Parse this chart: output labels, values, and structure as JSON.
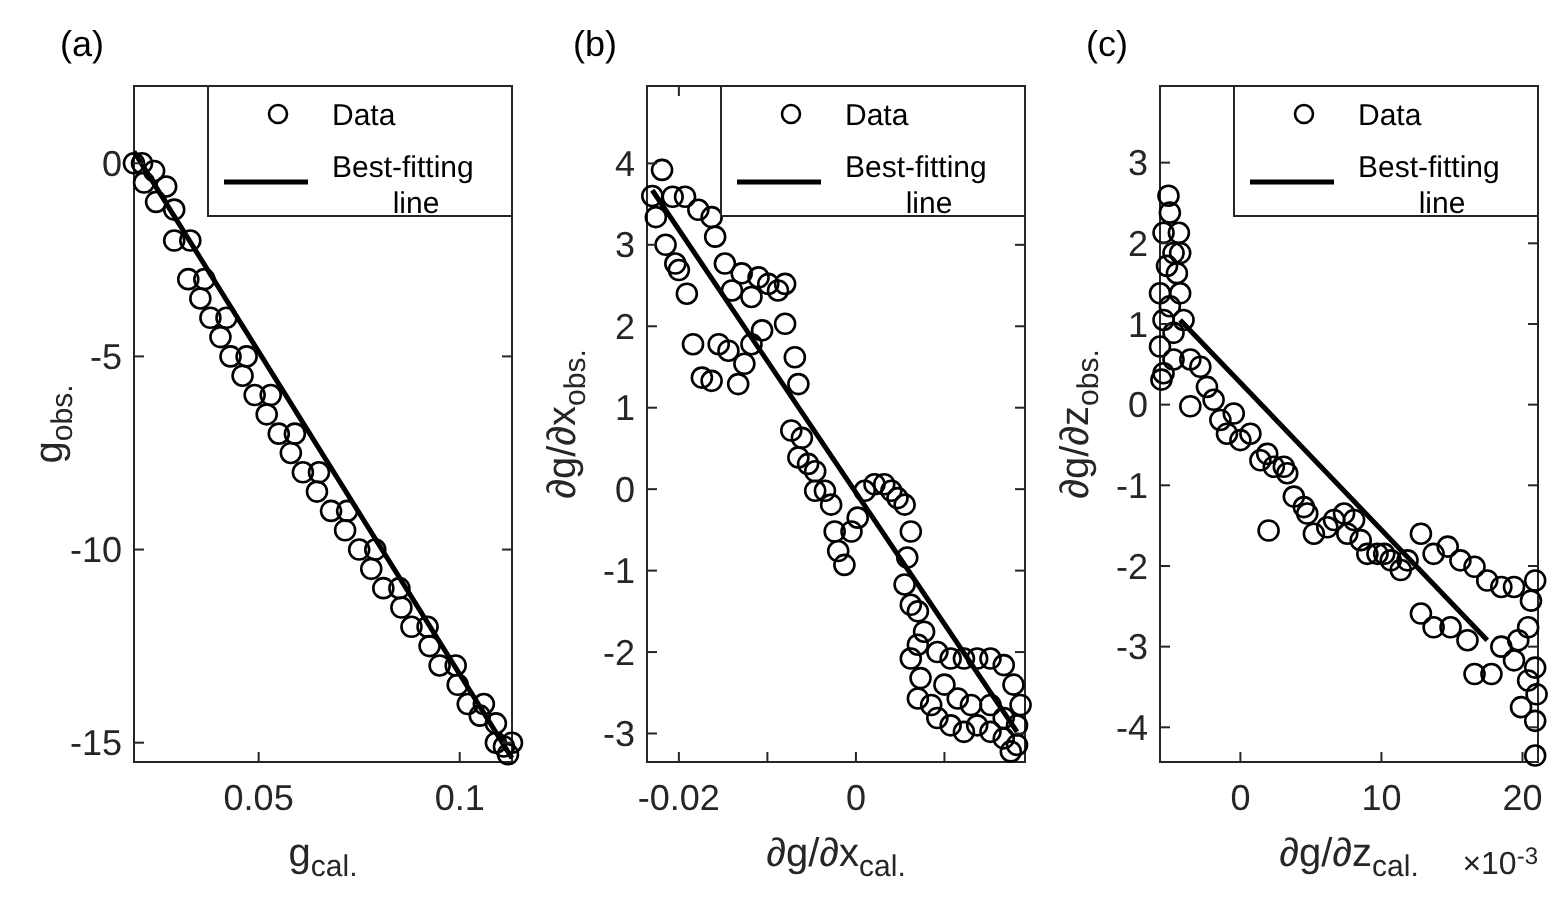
{
  "chart_data": [
    {
      "type": "scatter",
      "title": "(a)",
      "xlabel": "g$_{cal.}$",
      "ylabel": "g$_{obs.}$",
      "xlim": [
        0.019,
        0.113
      ],
      "ylim": [
        -15.5,
        2
      ],
      "xticks": [
        0.05,
        0.1
      ],
      "yticks": [
        -15,
        -10,
        -5,
        0
      ],
      "legend": "top right",
      "series": [
        {
          "name": "Data",
          "type": "scatter",
          "marker": "circle",
          "color": "#000000",
          "x": [
            0.019,
            0.0215,
            0.0245,
            0.029,
            0.0325,
            0.038,
            0.043,
            0.049,
            0.055,
            0.061,
            0.068,
            0.075,
            0.081,
            0.088,
            0.095,
            0.102,
            0.109,
            0.112,
            0.021,
            0.024,
            0.027,
            0.029,
            0.033,
            0.0365,
            0.042,
            0.047,
            0.053,
            0.059,
            0.065,
            0.072,
            0.079,
            0.085,
            0.092,
            0.099,
            0.106,
            0.109,
            0.113,
            0.0355,
            0.0405,
            0.046,
            0.052,
            0.058,
            0.0645,
            0.0715,
            0.078,
            0.0855,
            0.0925,
            0.0995,
            0.105,
            0.111
          ],
          "values": [
            0,
            -0.5,
            -1,
            -2,
            -3,
            -4,
            -5,
            -6,
            -7,
            -8,
            -9,
            -10,
            -11,
            -12,
            -13,
            -14,
            -15,
            -15.3,
            0,
            -0.2,
            -0.6,
            -1.2,
            -2,
            -3,
            -4,
            -5,
            -6,
            -7,
            -8,
            -9,
            -10,
            -11,
            -12,
            -13,
            -14,
            -14.5,
            -15,
            -3.5,
            -4.5,
            -5.5,
            -6.5,
            -7.5,
            -8.5,
            -9.5,
            -10.5,
            -11.5,
            -12.5,
            -13.5,
            -14.3,
            -15.1
          ]
        },
        {
          "name": "Best-fitting line",
          "type": "line",
          "color": "#000000",
          "x": [
            0.019,
            0.113
          ],
          "values": [
            0.3,
            -15.4
          ]
        }
      ]
    },
    {
      "type": "scatter",
      "title": "(b)",
      "xlabel": "∂g/∂x$_{cal.}$",
      "ylabel": "∂g/∂x$_{obs.}$",
      "xlim": [
        -0.0236,
        0.0191
      ],
      "ylim": [
        -3.35,
        4.95
      ],
      "xticks": [
        -0.02,
        {
          "value": -0.01,
          "label": null
        },
        0,
        {
          "value": 0.01,
          "label": null
        }
      ],
      "yticks": [
        -3,
        -2,
        -1,
        0,
        1,
        2,
        3,
        4
      ],
      "legend": "top right",
      "series": [
        {
          "name": "Data",
          "type": "scatter",
          "marker": "circle",
          "color": "#000000",
          "x": [
            -0.0219,
            -0.023,
            -0.0226,
            -0.0207,
            -0.0193,
            -0.0178,
            -0.0163,
            -0.0215,
            -0.0204,
            -0.02,
            -0.0191,
            -0.0184,
            -0.0174,
            -0.0163,
            -0.0155,
            -0.0144,
            -0.0133,
            -0.0126,
            -0.0159,
            -0.0148,
            -0.014,
            -0.0129,
            -0.0118,
            -0.011,
            -0.0099,
            -0.0088,
            -0.008,
            -0.0106,
            -0.0118,
            -0.008,
            -0.0069,
            -0.0065,
            -0.0073,
            -0.0061,
            -0.0065,
            -0.0054,
            -0.0046,
            -0.0035,
            -0.0028,
            -0.0046,
            -0.0024,
            -0.002,
            -0.0013,
            -0.0005,
            0.0002,
            0.001,
            0.0021,
            0.0032,
            0.004,
            0.0047,
            0.0055,
            0.0062,
            0.0058,
            0.0055,
            0.0062,
            0.007,
            0.0077,
            0.007,
            0.0062,
            0.0073,
            0.007,
            0.0085,
            0.0092,
            0.0107,
            0.0122,
            0.0137,
            0.0152,
            0.0167,
            0.0182,
            0.0175,
            0.0092,
            0.0107,
            0.0122,
            0.0137,
            0.0152,
            0.0167,
            0.0178,
            0.0186,
            0.0182,
            0.01,
            0.0115,
            0.013,
            0.0152,
            0.0167
          ],
          "values": [
            3.92,
            3.6,
            3.34,
            3.59,
            3.59,
            3.43,
            3.34,
            3.0,
            2.77,
            2.69,
            2.4,
            1.78,
            1.37,
            1.33,
            1.78,
            1.7,
            1.29,
            1.54,
            3.1,
            2.77,
            2.44,
            2.65,
            2.36,
            2.6,
            2.52,
            2.44,
            2.52,
            1.95,
            1.78,
            2.03,
            1.62,
            1.29,
            0.72,
            0.63,
            0.39,
            0.31,
            -0.02,
            -0.02,
            -0.19,
            0.22,
            -0.52,
            -0.76,
            -0.93,
            -0.52,
            -0.35,
            -0.02,
            0.06,
            0.06,
            -0.02,
            -0.11,
            -0.19,
            -0.52,
            -0.84,
            -1.17,
            -1.42,
            -1.5,
            -1.75,
            -1.91,
            -2.08,
            -2.32,
            -2.57,
            -2.65,
            -2.81,
            -2.9,
            -2.98,
            -2.9,
            -2.98,
            -3.06,
            -3.14,
            -3.22,
            -2.0,
            -2.08,
            -2.08,
            -2.08,
            -2.08,
            -2.16,
            -2.4,
            -2.65,
            -2.9,
            -2.4,
            -2.57,
            -2.65,
            -2.65,
            -2.81
          ]
        },
        {
          "name": "Best-fitting line",
          "type": "line",
          "color": "#000000",
          "x": [
            -0.023,
            0.0182
          ],
          "values": [
            3.67,
            -2.98
          ]
        }
      ]
    },
    {
      "type": "scatter",
      "title": "(c)",
      "xlabel": "∂g/∂z$_{cal.}$",
      "ylabel": "∂g/∂z$_{obs.}$",
      "annotations": [
        "×10$^{-3}$"
      ],
      "xlim": [
        -5.7,
        21.1
      ],
      "ylim": [
        -4.43,
        3.95
      ],
      "xticks": [
        0,
        10,
        20
      ],
      "yticks": [
        -4,
        -3,
        -2,
        -1,
        0,
        1,
        2,
        3
      ],
      "legend": "top right",
      "series": [
        {
          "name": "Data",
          "type": "scatter",
          "marker": "circle",
          "color": "#000000",
          "x": [
            -5.1,
            -5.0,
            -5.45,
            -4.74,
            -5.2,
            -4.5,
            -5.7,
            -5.0,
            -4.27,
            -5.45,
            -4.74,
            -5.7,
            -5.45,
            -5.6,
            -4.74,
            -4.27,
            -4.36,
            -4.03,
            -3.55,
            -2.84,
            -3.55,
            -2.37,
            -1.9,
            -1.42,
            -0.47,
            -0.95,
            0,
            0.71,
            1.42,
            1.9,
            2.37,
            3.08,
            3.32,
            3.79,
            4.5,
            4.74,
            5.21,
            6.16,
            6.64,
            7.35,
            8.06,
            7.58,
            8.53,
            9.0,
            9.72,
            10.2,
            10.66,
            11.37,
            11.85,
            12.8,
            13.7,
            14.7,
            15.6,
            16.6,
            17.5,
            18.5,
            19.4,
            2.0,
            12.8,
            13.7,
            14.9,
            16.1,
            16.6,
            17.8,
            18.5,
            19.4,
            19.9,
            20.4,
            20.9,
            20.6,
            20.9,
            21.0,
            20.9,
            20.9,
            20.4,
            19.7
          ],
          "values": [
            2.59,
            2.38,
            2.13,
            1.88,
            1.72,
            1.63,
            1.38,
            1.22,
            1.38,
            1.05,
            0.89,
            0.72,
            0.39,
            0.31,
            0.56,
            1.88,
            2.13,
            1.05,
            0.56,
            0.47,
            -0.02,
            0.22,
            0.06,
            -0.19,
            -0.11,
            -0.36,
            -0.44,
            -0.36,
            -0.69,
            -0.61,
            -0.77,
            -0.77,
            -0.85,
            -1.14,
            -1.27,
            -1.35,
            -1.6,
            -1.52,
            -1.43,
            -1.35,
            -1.43,
            -1.6,
            -1.68,
            -1.85,
            -1.85,
            -1.85,
            -1.93,
            -2.05,
            -1.93,
            -1.6,
            -1.85,
            -1.76,
            -1.93,
            -2.01,
            -2.18,
            -2.26,
            -2.26,
            -1.56,
            -2.59,
            -2.76,
            -2.76,
            -2.92,
            -3.34,
            -3.34,
            -3.0,
            -3.17,
            -3.75,
            -2.76,
            -2.18,
            -2.43,
            -3.26,
            -3.59,
            -3.92,
            -4.35,
            -3.42,
            -2.92
          ]
        },
        {
          "name": "Best-fitting line",
          "type": "line",
          "color": "#000000",
          "x": [
            -4.27,
            17.5
          ],
          "values": [
            1.05,
            -2.92
          ]
        }
      ]
    }
  ]
}
